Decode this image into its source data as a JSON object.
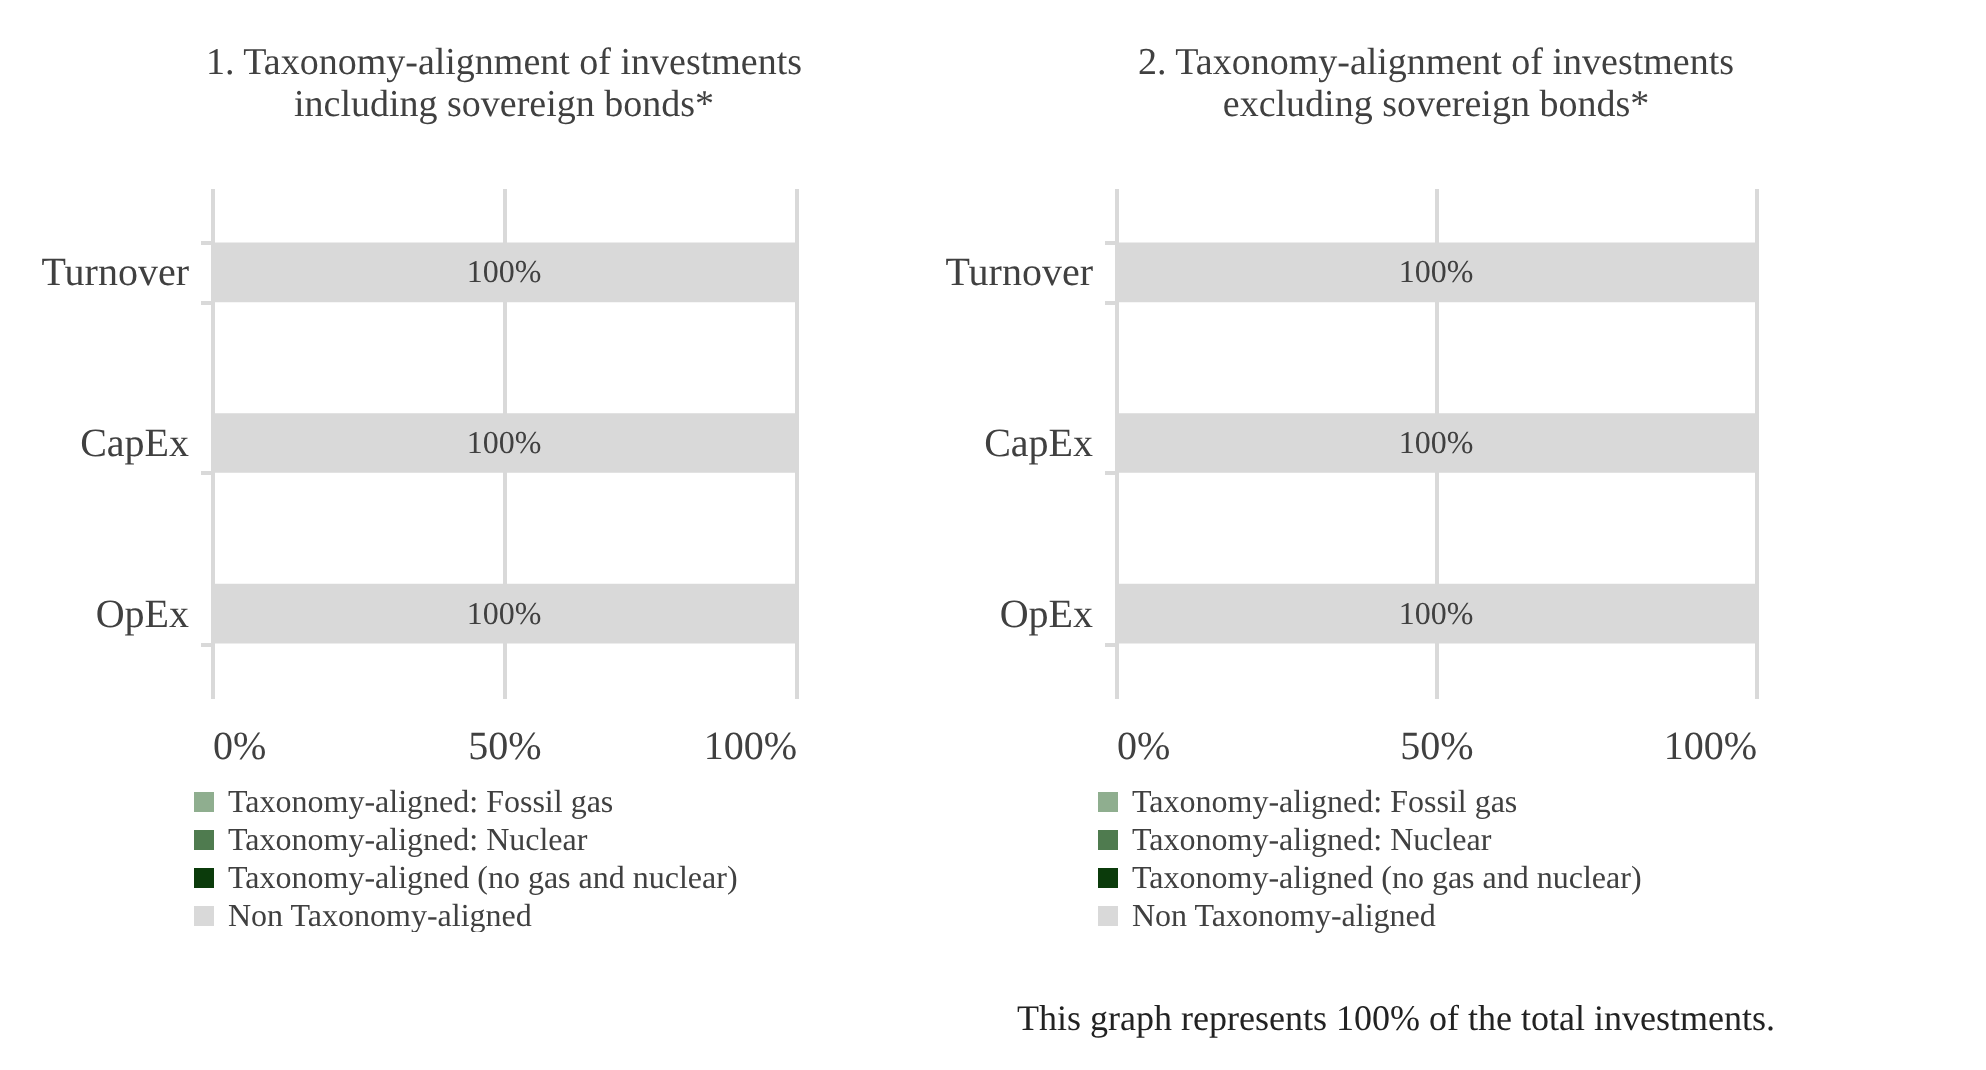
{
  "chart_data": [
    {
      "type": "bar",
      "orientation": "horizontal",
      "stacked": true,
      "title": "1. Taxonomy-alignment of investments including sovereign bonds*",
      "categories": [
        "Turnover",
        "CapEx",
        "OpEx"
      ],
      "series": [
        {
          "name": "Taxonomy-aligned: Fossil gas",
          "color": "#8fae8f",
          "values": [
            0,
            0,
            0
          ]
        },
        {
          "name": "Taxonomy-aligned: Nuclear",
          "color": "#4f7b4f",
          "values": [
            0,
            0,
            0
          ]
        },
        {
          "name": "Taxonomy-aligned (no gas and nuclear)",
          "color": "#0b3b0b",
          "values": [
            0,
            0,
            0
          ]
        },
        {
          "name": "Non Taxonomy-aligned",
          "color": "#d9d9d9",
          "values": [
            100,
            100,
            100
          ],
          "value_labels": [
            "100%",
            "100%",
            "100%"
          ]
        }
      ],
      "xlim": [
        0,
        100
      ],
      "xticks": [
        {
          "value": 0,
          "label": "0%"
        },
        {
          "value": 50,
          "label": "50%"
        },
        {
          "value": 100,
          "label": "100%"
        }
      ],
      "grid": "x",
      "legend": "bottom"
    },
    {
      "type": "bar",
      "orientation": "horizontal",
      "stacked": true,
      "title": "2. Taxonomy-alignment of investments excluding sovereign bonds*",
      "categories": [
        "Turnover",
        "CapEx",
        "OpEx"
      ],
      "series": [
        {
          "name": "Taxonomy-aligned: Fossil gas",
          "color": "#8fae8f",
          "values": [
            0,
            0,
            0
          ]
        },
        {
          "name": "Taxonomy-aligned: Nuclear",
          "color": "#4f7b4f",
          "values": [
            0,
            0,
            0
          ]
        },
        {
          "name": "Taxonomy-aligned (no gas and nuclear)",
          "color": "#0b3b0b",
          "values": [
            0,
            0,
            0
          ]
        },
        {
          "name": "Non Taxonomy-aligned",
          "color": "#d9d9d9",
          "values": [
            100,
            100,
            100
          ],
          "value_labels": [
            "100%",
            "100%",
            "100%"
          ]
        }
      ],
      "xlim": [
        0,
        100
      ],
      "xticks": [
        {
          "value": 0,
          "label": "0%"
        },
        {
          "value": 50,
          "label": "50%"
        },
        {
          "value": 100,
          "label": "100%"
        }
      ],
      "grid": "x",
      "legend": "bottom",
      "annotations": [
        "This graph represents 100% of the total investments."
      ]
    }
  ]
}
